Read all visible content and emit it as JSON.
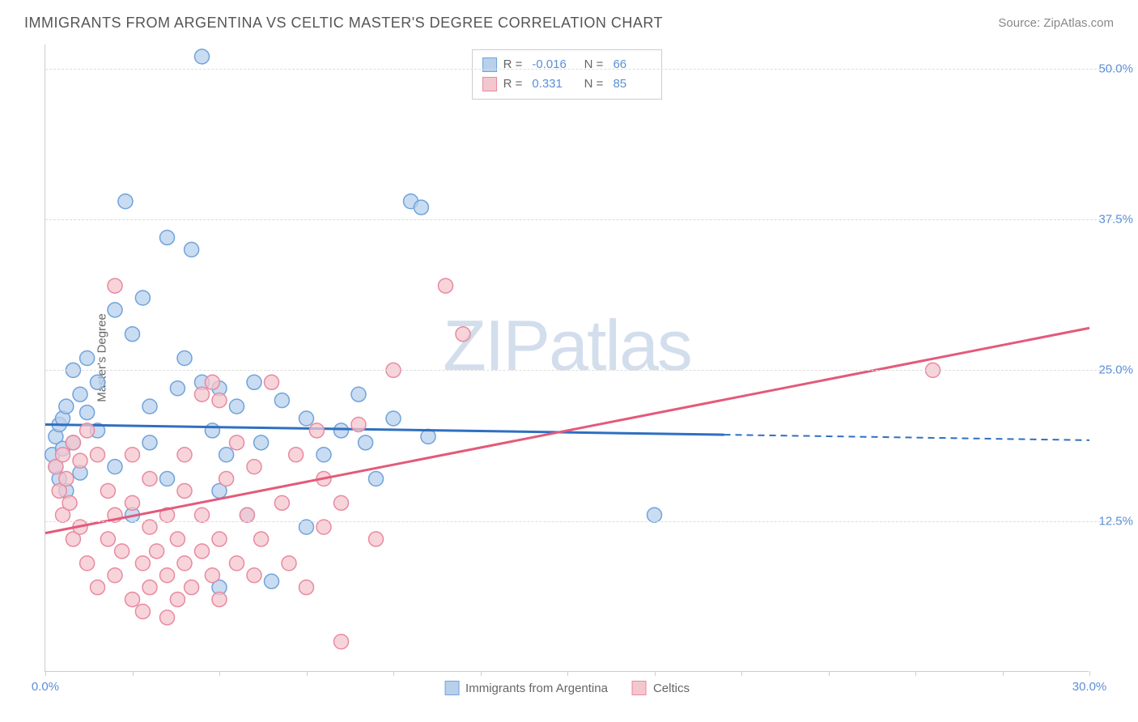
{
  "header": {
    "title": "IMMIGRANTS FROM ARGENTINA VS CELTIC MASTER'S DEGREE CORRELATION CHART",
    "source_prefix": "Source: ",
    "source": "ZipAtlas.com"
  },
  "chart": {
    "type": "scatter",
    "ylabel": "Master's Degree",
    "watermark": "ZIPatlas",
    "background_color": "#ffffff",
    "grid_color": "#dddddd",
    "axis_color": "#cccccc",
    "tick_label_color": "#5b8fd6",
    "xlim": [
      0,
      30
    ],
    "ylim": [
      0,
      52
    ],
    "xticks": [
      0,
      2.5,
      5,
      7.5,
      10,
      12.5,
      15,
      17.5,
      20,
      22.5,
      25,
      27.5,
      30
    ],
    "xtick_labels": {
      "0": "0.0%",
      "30": "30.0%"
    },
    "yticks": [
      12.5,
      25.0,
      37.5,
      50.0
    ],
    "ytick_labels": [
      "12.5%",
      "25.0%",
      "37.5%",
      "50.0%"
    ],
    "series": [
      {
        "name": "Immigrants from Argentina",
        "color_fill": "#b8d0ec",
        "color_stroke": "#6fa3dc",
        "marker_radius": 9,
        "marker_opacity": 0.75,
        "R": "-0.016",
        "N": "66",
        "trend": {
          "color": "#2f6fc1",
          "width": 3,
          "y_at_x0": 20.5,
          "y_at_xmax": 19.2,
          "solid_until_x": 19.5
        },
        "points": [
          [
            0.2,
            18
          ],
          [
            0.3,
            19.5
          ],
          [
            0.3,
            17
          ],
          [
            0.4,
            20.5
          ],
          [
            0.4,
            16
          ],
          [
            0.5,
            21
          ],
          [
            0.5,
            18.5
          ],
          [
            0.6,
            22
          ],
          [
            0.6,
            15
          ],
          [
            0.8,
            25
          ],
          [
            0.8,
            19
          ],
          [
            1.0,
            23
          ],
          [
            1.0,
            16.5
          ],
          [
            1.2,
            26
          ],
          [
            1.2,
            21.5
          ],
          [
            1.5,
            20
          ],
          [
            1.5,
            24
          ],
          [
            2.0,
            30
          ],
          [
            2.0,
            17
          ],
          [
            2.3,
            39
          ],
          [
            2.5,
            28
          ],
          [
            2.5,
            13
          ],
          [
            2.8,
            31
          ],
          [
            3.0,
            22
          ],
          [
            3.0,
            19
          ],
          [
            3.5,
            36
          ],
          [
            3.5,
            16
          ],
          [
            3.8,
            23.5
          ],
          [
            4.0,
            26
          ],
          [
            4.2,
            35
          ],
          [
            4.5,
            51
          ],
          [
            4.5,
            24
          ],
          [
            4.8,
            20
          ],
          [
            5.0,
            15
          ],
          [
            5.0,
            23.5
          ],
          [
            5.0,
            7
          ],
          [
            5.2,
            18
          ],
          [
            5.5,
            22
          ],
          [
            5.8,
            13
          ],
          [
            6.0,
            24
          ],
          [
            6.2,
            19
          ],
          [
            6.5,
            7.5
          ],
          [
            6.8,
            22.5
          ],
          [
            7.5,
            21
          ],
          [
            7.5,
            12
          ],
          [
            8.0,
            18
          ],
          [
            8.5,
            20
          ],
          [
            9.0,
            23
          ],
          [
            9.2,
            19
          ],
          [
            9.5,
            16
          ],
          [
            10.0,
            21
          ],
          [
            10.5,
            39
          ],
          [
            10.8,
            38.5
          ],
          [
            11.0,
            19.5
          ],
          [
            17.5,
            13
          ]
        ]
      },
      {
        "name": "Celtics",
        "color_fill": "#f4c6ce",
        "color_stroke": "#e88aa0",
        "marker_radius": 9,
        "marker_opacity": 0.75,
        "R": "0.331",
        "N": "85",
        "trend": {
          "color": "#e35a7a",
          "width": 3,
          "y_at_x0": 11.5,
          "y_at_xmax": 28.5,
          "solid_until_x": 30
        },
        "points": [
          [
            0.3,
            17
          ],
          [
            0.4,
            15
          ],
          [
            0.5,
            18
          ],
          [
            0.5,
            13
          ],
          [
            0.6,
            16
          ],
          [
            0.7,
            14
          ],
          [
            0.8,
            19
          ],
          [
            0.8,
            11
          ],
          [
            1.0,
            17.5
          ],
          [
            1.0,
            12
          ],
          [
            1.2,
            20
          ],
          [
            1.2,
            9
          ],
          [
            1.5,
            18
          ],
          [
            1.5,
            7
          ],
          [
            1.8,
            11
          ],
          [
            1.8,
            15
          ],
          [
            2.0,
            32
          ],
          [
            2.0,
            8
          ],
          [
            2.0,
            13
          ],
          [
            2.2,
            10
          ],
          [
            2.5,
            6
          ],
          [
            2.5,
            14
          ],
          [
            2.5,
            18
          ],
          [
            2.8,
            9
          ],
          [
            2.8,
            5
          ],
          [
            3.0,
            12
          ],
          [
            3.0,
            7
          ],
          [
            3.0,
            16
          ],
          [
            3.2,
            10
          ],
          [
            3.5,
            8
          ],
          [
            3.5,
            13
          ],
          [
            3.5,
            4.5
          ],
          [
            3.8,
            11
          ],
          [
            3.8,
            6
          ],
          [
            4.0,
            9
          ],
          [
            4.0,
            15
          ],
          [
            4.0,
            18
          ],
          [
            4.2,
            7
          ],
          [
            4.5,
            10
          ],
          [
            4.5,
            23
          ],
          [
            4.5,
            13
          ],
          [
            4.8,
            8
          ],
          [
            4.8,
            24
          ],
          [
            5.0,
            11
          ],
          [
            5.0,
            6
          ],
          [
            5.0,
            22.5
          ],
          [
            5.2,
            16
          ],
          [
            5.5,
            9
          ],
          [
            5.5,
            19
          ],
          [
            5.8,
            13
          ],
          [
            6.0,
            8
          ],
          [
            6.0,
            17
          ],
          [
            6.2,
            11
          ],
          [
            6.5,
            24
          ],
          [
            6.8,
            14
          ],
          [
            7.0,
            9
          ],
          [
            7.2,
            18
          ],
          [
            7.5,
            7
          ],
          [
            7.8,
            20
          ],
          [
            8.0,
            12
          ],
          [
            8.0,
            16
          ],
          [
            8.5,
            2.5
          ],
          [
            8.5,
            14
          ],
          [
            9.0,
            20.5
          ],
          [
            9.5,
            11
          ],
          [
            10.0,
            25
          ],
          [
            11.5,
            32
          ],
          [
            12.0,
            28
          ],
          [
            25.5,
            25
          ]
        ]
      }
    ],
    "legend_bottom": [
      {
        "label": "Immigrants from Argentina",
        "fill": "#b8d0ec",
        "stroke": "#6fa3dc"
      },
      {
        "label": "Celtics",
        "fill": "#f4c6ce",
        "stroke": "#e88aa0"
      }
    ]
  }
}
